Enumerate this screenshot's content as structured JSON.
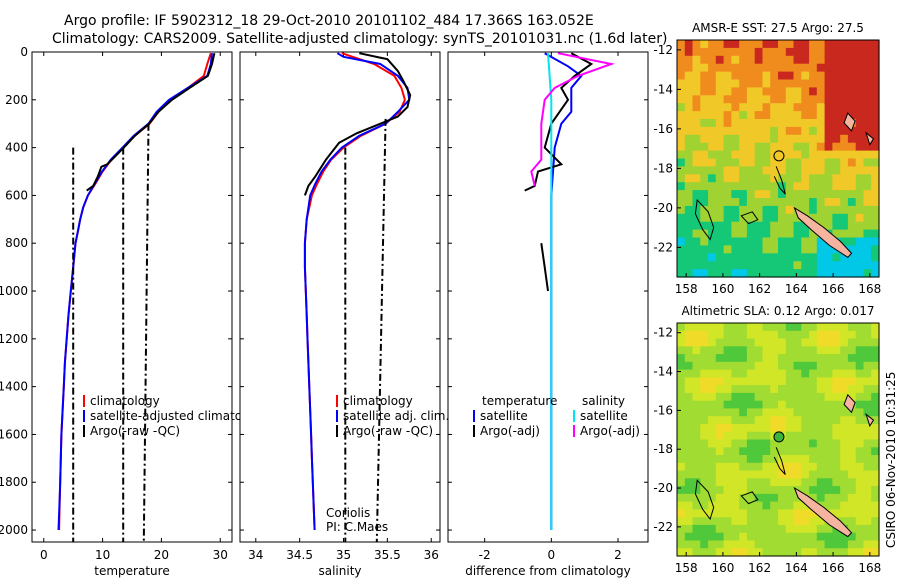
{
  "header": {
    "line1": "Argo profile: IF 5902312_18 29-Oct-2010 20101102_484 17.366S 163.052E",
    "line2": "Climatology: CARS2009. Satellite-adjusted climatology: synTS_20101031.nc (1.6d later)"
  },
  "credit": "CSIRO 06-Nov-2010 10:31:25",
  "colors": {
    "climatology": "#ff0000",
    "satellite": "#0000ff",
    "argo": "#000000",
    "salinity_satellite": "#00e5ee",
    "salinity_argo": "#ff00ff"
  },
  "chart_data": [
    {
      "type": "line",
      "xlabel": "temperature",
      "ylabel": "",
      "xlim": [
        -2,
        32
      ],
      "ylim": [
        2050,
        0
      ],
      "xticks": [
        "0",
        "10",
        "20",
        "30"
      ],
      "yticks": [
        "0",
        "200",
        "400",
        "600",
        "800",
        "1000",
        "1200",
        "1400",
        "1600",
        "1800",
        "2000"
      ],
      "legend": {
        "placement": "lower-right",
        "entries": [
          "climatology",
          "satellite-adjusted climatology",
          "Argo(-raw -QC)"
        ]
      },
      "series": [
        {
          "name": "climatology",
          "color": "climatology",
          "dash": "solid",
          "points": [
            [
              28.4,
              5
            ],
            [
              27.8,
              50
            ],
            [
              27.2,
              100
            ],
            [
              24.5,
              150
            ],
            [
              21.5,
              200
            ],
            [
              19.5,
              250
            ],
            [
              18.0,
              300
            ],
            [
              15.5,
              350
            ],
            [
              13.5,
              400
            ],
            [
              11.5,
              450
            ],
            [
              10.0,
              500
            ],
            [
              8.8,
              550
            ],
            [
              7.5,
              600
            ],
            [
              6.7,
              650
            ],
            [
              6.2,
              700
            ],
            [
              5.8,
              750
            ],
            [
              5.4,
              800
            ],
            [
              5.0,
              900
            ],
            [
              4.6,
              1000
            ],
            [
              4.2,
              1100
            ],
            [
              3.9,
              1200
            ],
            [
              3.6,
              1300
            ],
            [
              3.4,
              1400
            ],
            [
              3.2,
              1500
            ],
            [
              3.0,
              1600
            ],
            [
              2.9,
              1700
            ],
            [
              2.8,
              1800
            ],
            [
              2.7,
              1900
            ],
            [
              2.6,
              2000
            ]
          ]
        },
        {
          "name": "satellite-adjusted climatology",
          "color": "satellite",
          "dash": "solid",
          "points": [
            [
              28.6,
              5
            ],
            [
              28.4,
              50
            ],
            [
              27.8,
              100
            ],
            [
              24.5,
              150
            ],
            [
              21.3,
              200
            ],
            [
              19.2,
              250
            ],
            [
              17.8,
              300
            ],
            [
              15.3,
              350
            ],
            [
              13.4,
              400
            ],
            [
              11.4,
              450
            ],
            [
              9.9,
              500
            ],
            [
              8.7,
              550
            ],
            [
              7.5,
              600
            ],
            [
              6.7,
              650
            ],
            [
              6.2,
              700
            ],
            [
              5.8,
              750
            ],
            [
              5.4,
              800
            ],
            [
              5.0,
              900
            ],
            [
              4.6,
              1000
            ],
            [
              4.2,
              1100
            ],
            [
              3.9,
              1200
            ],
            [
              3.6,
              1300
            ],
            [
              3.4,
              1400
            ],
            [
              3.2,
              1500
            ],
            [
              3.0,
              1600
            ],
            [
              2.9,
              1700
            ],
            [
              2.8,
              1800
            ],
            [
              2.65,
              1900
            ],
            [
              2.5,
              2000
            ]
          ]
        },
        {
          "name": "Argo(-raw -QC)",
          "color": "argo",
          "dash": "solid",
          "points": [
            [
              29.0,
              5
            ],
            [
              28.6,
              50
            ],
            [
              27.9,
              100
            ],
            [
              24.8,
              150
            ],
            [
              21.8,
              200
            ],
            [
              19.5,
              250
            ],
            [
              17.9,
              300
            ],
            [
              15.5,
              350
            ],
            [
              13.6,
              400
            ],
            [
              12.0,
              440
            ],
            [
              10.8,
              470
            ],
            [
              9.8,
              480
            ],
            [
              9.2,
              520
            ],
            [
              8.4,
              560
            ],
            [
              7.3,
              580
            ]
          ]
        },
        {
          "name": "",
          "color": "argo",
          "dash": "dashdot",
          "points": [
            [
              5.0,
              400
            ],
            [
              5.0,
              2050
            ]
          ]
        },
        {
          "name": "",
          "color": "argo",
          "dash": "dashdot",
          "points": [
            [
              13.5,
              400
            ],
            [
              13.5,
              2050
            ]
          ]
        },
        {
          "name": "",
          "color": "argo",
          "dash": "dashdot",
          "points": [
            [
              17.8,
              300
            ],
            [
              17.0,
              2050
            ]
          ]
        }
      ]
    },
    {
      "type": "line",
      "xlabel": "salinity",
      "ylabel": "",
      "xlim": [
        33.82,
        36.1
      ],
      "ylim": [
        2050,
        0
      ],
      "xticks": [
        "34",
        "34.5",
        "35",
        "35.5",
        "36"
      ],
      "yticks": [],
      "legend": {
        "placement": "lower-right",
        "entries": [
          "climatology",
          "satellite adj. clim.",
          "Argo(-raw -QC)"
        ]
      },
      "annotations": [
        "Coriolis",
        "PI: C.Maes"
      ],
      "series": [
        {
          "name": "climatology",
          "color": "climatology",
          "dash": "solid",
          "points": [
            [
              34.98,
              5
            ],
            [
              35.35,
              50
            ],
            [
              35.58,
              100
            ],
            [
              35.66,
              150
            ],
            [
              35.7,
              200
            ],
            [
              35.64,
              250
            ],
            [
              35.48,
              300
            ],
            [
              35.2,
              350
            ],
            [
              35.0,
              400
            ],
            [
              34.86,
              450
            ],
            [
              34.77,
              500
            ],
            [
              34.7,
              550
            ],
            [
              34.64,
              600
            ],
            [
              34.58,
              700
            ],
            [
              34.56,
              800
            ],
            [
              34.56,
              900
            ],
            [
              34.57,
              1000
            ],
            [
              34.58,
              1100
            ],
            [
              34.59,
              1200
            ],
            [
              34.6,
              1300
            ],
            [
              34.61,
              1400
            ],
            [
              34.62,
              1500
            ],
            [
              34.63,
              1600
            ],
            [
              34.64,
              1700
            ],
            [
              34.65,
              1800
            ],
            [
              34.66,
              1900
            ],
            [
              34.67,
              2000
            ]
          ]
        },
        {
          "name": "satellite adj. clim.",
          "color": "satellite",
          "dash": "solid",
          "points": [
            [
              34.93,
              5
            ],
            [
              35.0,
              20
            ],
            [
              35.42,
              50
            ],
            [
              35.62,
              100
            ],
            [
              35.73,
              150
            ],
            [
              35.75,
              200
            ],
            [
              35.62,
              250
            ],
            [
              35.48,
              300
            ],
            [
              35.18,
              350
            ],
            [
              34.98,
              400
            ],
            [
              34.85,
              450
            ],
            [
              34.75,
              500
            ],
            [
              34.68,
              550
            ],
            [
              34.62,
              600
            ],
            [
              34.58,
              700
            ],
            [
              34.56,
              800
            ],
            [
              34.56,
              900
            ],
            [
              34.57,
              1000
            ],
            [
              34.58,
              1100
            ],
            [
              34.59,
              1200
            ],
            [
              34.6,
              1300
            ],
            [
              34.61,
              1400
            ],
            [
              34.62,
              1500
            ],
            [
              34.63,
              1600
            ],
            [
              34.64,
              1700
            ],
            [
              34.65,
              1800
            ],
            [
              34.66,
              1900
            ],
            [
              34.67,
              2000
            ]
          ]
        },
        {
          "name": "Argo(-raw -QC)",
          "color": "argo",
          "dash": "solid",
          "points": [
            [
              35.18,
              5
            ],
            [
              35.5,
              30
            ],
            [
              35.62,
              80
            ],
            [
              35.68,
              120
            ],
            [
              35.76,
              180
            ],
            [
              35.73,
              230
            ],
            [
              35.62,
              270
            ],
            [
              35.42,
              300
            ],
            [
              35.15,
              340
            ],
            [
              34.95,
              380
            ],
            [
              34.8,
              450
            ],
            [
              34.68,
              520
            ],
            [
              34.6,
              560
            ],
            [
              34.56,
              600
            ]
          ]
        },
        {
          "name": "",
          "color": "argo",
          "dash": "dashdot",
          "points": [
            [
              35.02,
              400
            ],
            [
              35.02,
              2050
            ]
          ]
        },
        {
          "name": "",
          "color": "argo",
          "dash": "dashdot",
          "points": [
            [
              35.48,
              280
            ],
            [
              35.38,
              2050
            ]
          ]
        }
      ]
    },
    {
      "type": "line",
      "xlabel": "difference from climatology",
      "ylabel": "",
      "xlim": [
        -3.1,
        2.9
      ],
      "ylim": [
        2050,
        0
      ],
      "xticks": [
        "-2",
        "0",
        "2"
      ],
      "yticks": [],
      "legend": {
        "placement": "lower",
        "entries": [
          "temperature",
          "satellite",
          "Argo(-adj)",
          "salinity",
          "satellite",
          "Argo(-adj)"
        ]
      },
      "series": [
        {
          "name": "temperature satellite",
          "color": "satellite",
          "dash": "solid",
          "points": [
            [
              -0.2,
              5
            ],
            [
              0.5,
              60
            ],
            [
              0.9,
              100
            ],
            [
              0.6,
              150
            ],
            [
              0.6,
              200
            ],
            [
              0.6,
              250
            ],
            [
              0.3,
              300
            ],
            [
              0.1,
              400
            ],
            [
              0.05,
              500
            ],
            [
              0.0,
              600
            ],
            [
              0.0,
              800
            ],
            [
              0.0,
              1000
            ],
            [
              0.0,
              2000
            ]
          ]
        },
        {
          "name": "temperature Argo(-adj)",
          "color": "argo",
          "dash": "solid",
          "points": [
            [
              0.6,
              5
            ],
            [
              1.2,
              50
            ],
            [
              0.7,
              100
            ],
            [
              0.3,
              150
            ],
            [
              0.5,
              200
            ],
            [
              0.0,
              300
            ],
            [
              -0.2,
              400
            ],
            [
              0.3,
              470
            ],
            [
              -0.4,
              500
            ],
            [
              -0.5,
              560
            ],
            [
              -0.8,
              580
            ]
          ]
        },
        {
          "name": "salinity satellite",
          "color": "salinity_satellite",
          "dash": "solid",
          "points": [
            [
              -0.1,
              5
            ],
            [
              0.0,
              200
            ],
            [
              0.0,
              600
            ],
            [
              0.0,
              2000
            ]
          ]
        },
        {
          "name": "salinity Argo(-adj)",
          "color": "salinity_argo",
          "dash": "solid",
          "points": [
            [
              0.2,
              5
            ],
            [
              1.8,
              50
            ],
            [
              0.8,
              100
            ],
            [
              0.1,
              150
            ],
            [
              -0.2,
              200
            ],
            [
              -0.3,
              300
            ],
            [
              -0.3,
              450
            ],
            [
              -0.6,
              500
            ],
            [
              -0.5,
              560
            ]
          ]
        },
        {
          "name": "",
          "color": "argo",
          "dash": "solid",
          "points": [
            [
              -0.3,
              800
            ],
            [
              -0.2,
              900
            ],
            [
              -0.1,
              1000
            ]
          ]
        }
      ]
    },
    {
      "type": "heatmap",
      "title": "AMSR-E SST: 27.5 Argo: 27.5",
      "xlim": [
        157.5,
        168.5
      ],
      "ylim": [
        -23.5,
        -11.5
      ],
      "xticks": [
        "158",
        "160",
        "162",
        "164",
        "166",
        "168"
      ],
      "yticks": [
        "-12",
        "-14",
        "-16",
        "-18",
        "-20",
        "-22"
      ],
      "marker": {
        "lon": 163.052,
        "lat": -17.366,
        "style": "open-circle"
      }
    },
    {
      "type": "heatmap",
      "title": "Altimetric SLA: 0.12 Argo: 0.017",
      "xlim": [
        157.5,
        168.5
      ],
      "ylim": [
        -23.5,
        -11.5
      ],
      "xticks": [
        "158",
        "160",
        "162",
        "164",
        "166",
        "168"
      ],
      "yticks": [
        "-12",
        "-14",
        "-16",
        "-18",
        "-20",
        "-22"
      ],
      "marker": {
        "lon": 163.052,
        "lat": -17.366,
        "style": "filled-circle"
      }
    }
  ]
}
